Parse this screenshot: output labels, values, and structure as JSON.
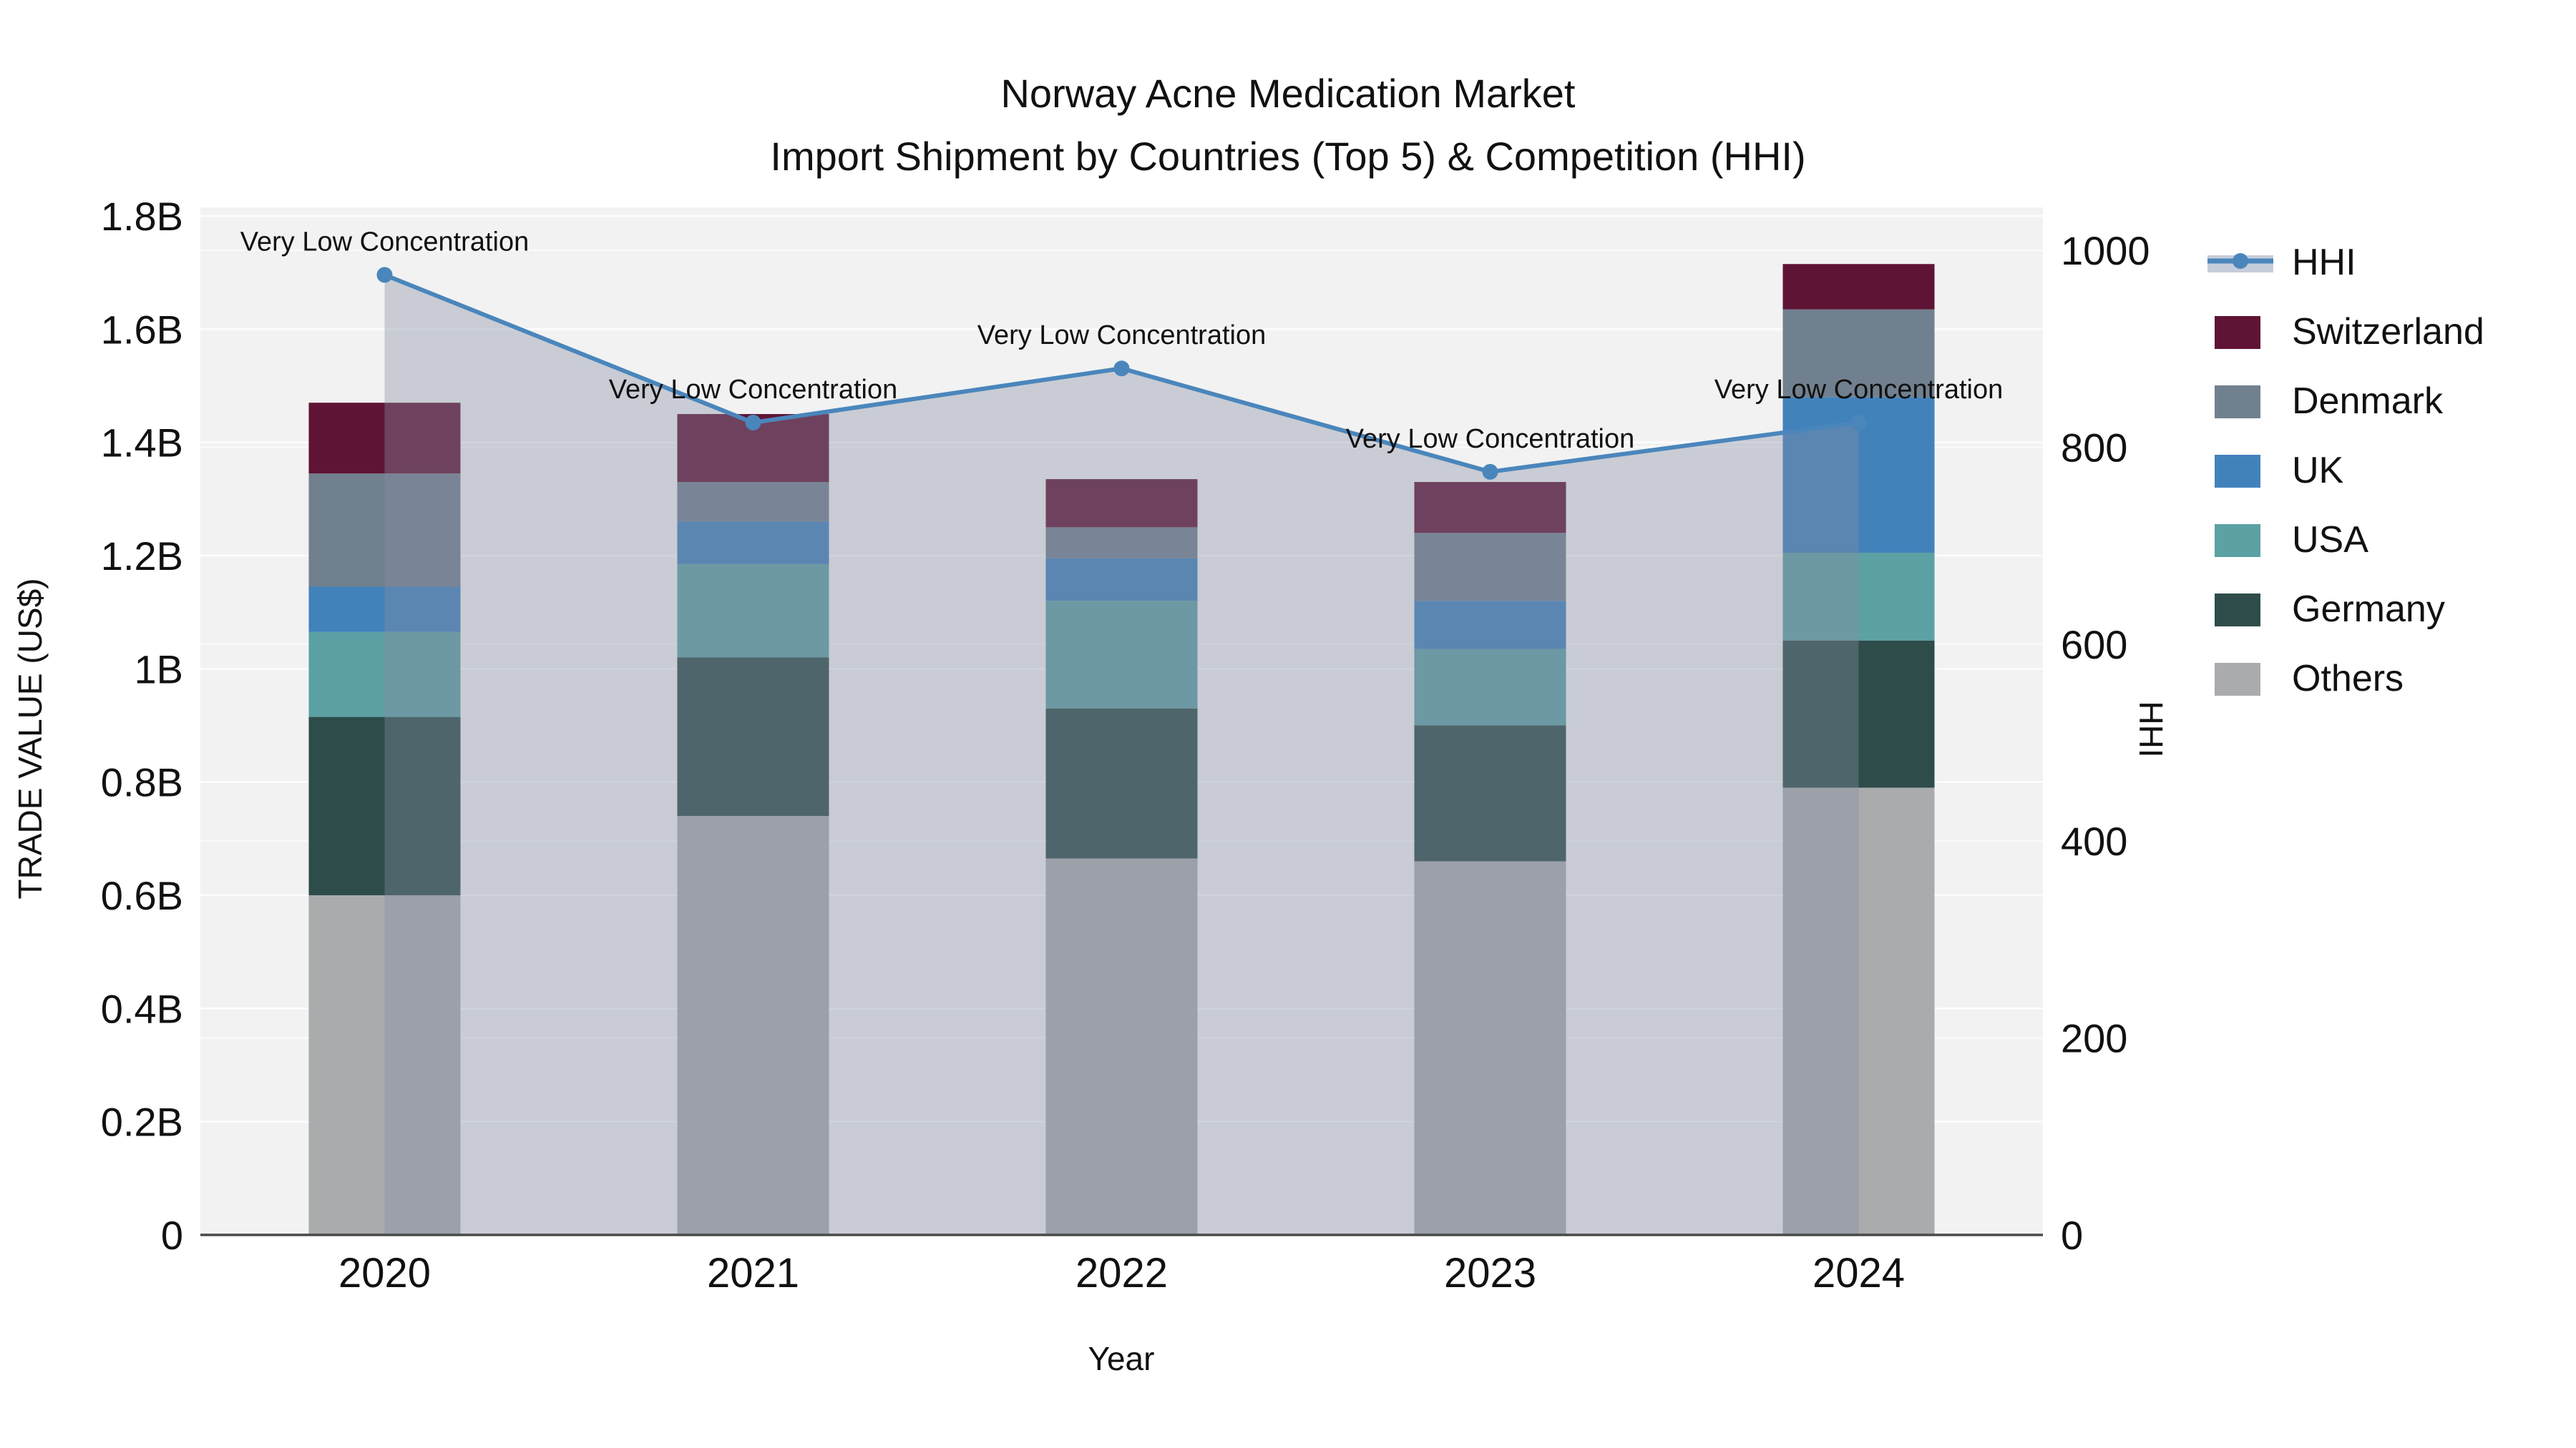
{
  "title": {
    "line1": "Norway Acne Medication Market",
    "line2": "Import Shipment by Countries (Top 5) & Competition (HHI)"
  },
  "axes": {
    "left": {
      "title": "TRADE VALUE (US$)",
      "range": [
        0,
        1.8
      ],
      "ticks": [
        {
          "value": 0,
          "label": "0"
        },
        {
          "value": 0.2,
          "label": "0.2B"
        },
        {
          "value": 0.4,
          "label": "0.4B"
        },
        {
          "value": 0.6,
          "label": "0.6B"
        },
        {
          "value": 0.8,
          "label": "0.8B"
        },
        {
          "value": 1.0,
          "label": "1B"
        },
        {
          "value": 1.2,
          "label": "1.2B"
        },
        {
          "value": 1.4,
          "label": "1.4B"
        },
        {
          "value": 1.6,
          "label": "1.6B"
        },
        {
          "value": 1.8,
          "label": "1.8B"
        }
      ]
    },
    "right": {
      "title": "HHI",
      "range": [
        0,
        1000
      ],
      "ticks": [
        {
          "value": 0,
          "label": "0"
        },
        {
          "value": 200,
          "label": "200"
        },
        {
          "value": 400,
          "label": "400"
        },
        {
          "value": 600,
          "label": "600"
        },
        {
          "value": 800,
          "label": "800"
        },
        {
          "value": 1000,
          "label": "1000"
        }
      ]
    },
    "x": {
      "title": "Year",
      "categories": [
        "2020",
        "2021",
        "2022",
        "2023",
        "2024"
      ]
    }
  },
  "legend": [
    {
      "label": "HHI",
      "type": "line",
      "color": "#4A86BC"
    },
    {
      "label": "Switzerland",
      "type": "box",
      "color": "#5F1435"
    },
    {
      "label": "Denmark",
      "type": "box",
      "color": "#71808F"
    },
    {
      "label": "UK",
      "type": "box",
      "color": "#4282BB"
    },
    {
      "label": "USA",
      "type": "box",
      "color": "#5CA1A3"
    },
    {
      "label": "Germany",
      "type": "box",
      "color": "#2D4C4A"
    },
    {
      "label": "Others",
      "type": "box",
      "color": "#A9ABAD"
    }
  ],
  "annotations": [
    {
      "year": "2020",
      "text": "Very Low Concentration"
    },
    {
      "year": "2021",
      "text": "Very Low Concentration"
    },
    {
      "year": "2022",
      "text": "Very Low Concentration"
    },
    {
      "year": "2023",
      "text": "Very Low Concentration"
    },
    {
      "year": "2024",
      "text": "Very Low Concentration"
    }
  ],
  "colors": {
    "hhi_line": "#4A86BC",
    "hhi_area_fill": "rgba(134,143,164,0.38)",
    "plot_background": "#F2F2F2",
    "gridline": "#FFFFFF",
    "axis_line": "#4A4A4A",
    "legend_hhi_band": "#C6CDDA"
  },
  "chart_data": {
    "type": "combo-stacked-bar-line",
    "categories": [
      "2020",
      "2021",
      "2022",
      "2023",
      "2024"
    ],
    "bar_unit": "billion US$",
    "bar_stack_order_bottom_to_top": [
      "Others",
      "Germany",
      "USA",
      "UK",
      "Denmark",
      "Switzerland"
    ],
    "series": [
      {
        "name": "Others",
        "color": "#A9ABAD",
        "values": [
          0.6,
          0.74,
          0.665,
          0.66,
          0.79
        ]
      },
      {
        "name": "Germany",
        "color": "#2D4C4A",
        "values": [
          0.315,
          0.28,
          0.265,
          0.24,
          0.26
        ]
      },
      {
        "name": "USA",
        "color": "#5CA1A3",
        "values": [
          0.15,
          0.165,
          0.19,
          0.135,
          0.155
        ]
      },
      {
        "name": "UK",
        "color": "#4282BB",
        "values": [
          0.08,
          0.075,
          0.075,
          0.085,
          0.275
        ]
      },
      {
        "name": "Denmark",
        "color": "#71808F",
        "values": [
          0.2,
          0.07,
          0.055,
          0.12,
          0.155
        ]
      },
      {
        "name": "Switzerland",
        "color": "#5F1435",
        "values": [
          0.125,
          0.12,
          0.085,
          0.09,
          0.08
        ]
      }
    ],
    "bar_totals": [
      1.47,
      1.45,
      1.335,
      1.33,
      1.715
    ],
    "line_series": {
      "name": "HHI",
      "axis": "right",
      "color": "#4A86BC",
      "values": [
        975,
        825,
        880,
        775,
        825
      ]
    },
    "ylim_left": [
      0,
      1.8
    ],
    "ylim_right": [
      0,
      1000
    ],
    "grid": true,
    "legend_position": "right"
  }
}
